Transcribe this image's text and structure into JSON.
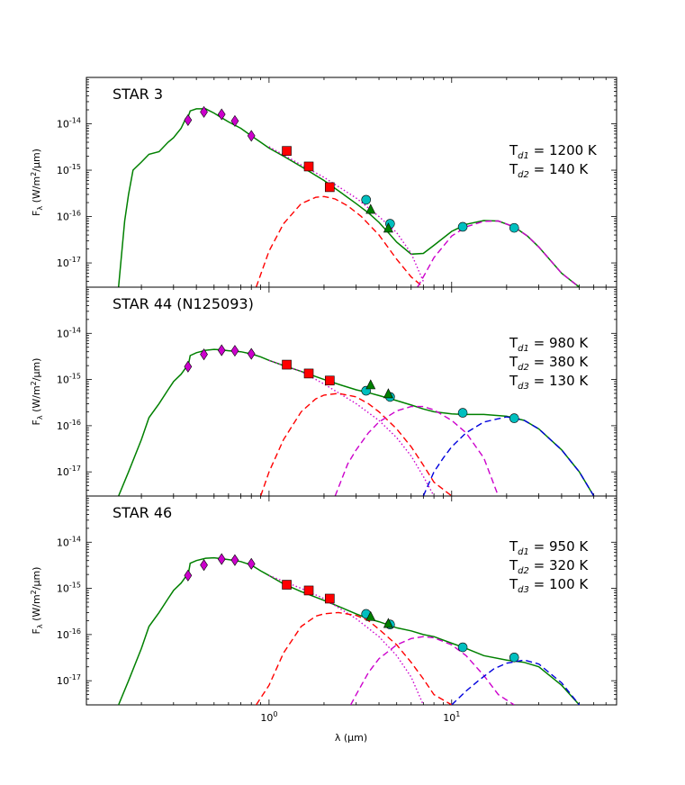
{
  "chart_data": [
    {
      "type": "line",
      "title": "STAR 3",
      "ylabel": "F_λ (W/m²/μm)",
      "xscale": "log",
      "yscale": "log",
      "xlim": [
        0.1,
        80
      ],
      "ylim": [
        3e-18,
        1e-13
      ],
      "temperatures": [
        {
          "sub": "d1",
          "text": "= 1200 K"
        },
        {
          "sub": "d2",
          "text": "= 140 K"
        }
      ],
      "series": [
        {
          "color": "#008000",
          "style": "solid",
          "x": [
            0.15,
            0.162,
            0.17,
            0.18,
            0.2,
            0.22,
            0.25,
            0.28,
            0.3,
            0.33,
            0.35,
            0.36,
            0.37,
            0.4,
            0.45,
            0.5,
            0.55,
            0.6,
            0.7,
            0.8,
            0.9,
            1.0,
            1.2,
            1.5,
            2.0,
            2.5,
            3.0,
            3.5,
            4.0,
            4.5,
            5.0,
            6.0,
            7.0,
            8.0,
            10.0,
            12.0,
            15.0,
            18.0,
            22.0,
            26.0,
            30.0,
            40.0,
            50.0
          ],
          "y": [
            3e-18,
            8e-17,
            3e-16,
            1e-15,
            1.5e-15,
            2.2e-15,
            2.5e-15,
            4e-15,
            5e-15,
            8e-15,
            1.3e-14,
            1.4e-14,
            1.9e-14,
            2.1e-14,
            2.1e-14,
            1.7e-14,
            1.35e-14,
            1.1e-14,
            8e-15,
            5.5e-15,
            4e-15,
            3e-15,
            2e-15,
            1.2e-15,
            6e-16,
            3.2e-16,
            1.9e-16,
            1.2e-16,
            7.5e-17,
            4.5e-17,
            2.8e-17,
            1.55e-17,
            1.6e-17,
            2.4e-17,
            4.8e-17,
            6.8e-17,
            8.2e-17,
            8e-17,
            6e-17,
            3.8e-17,
            2.2e-17,
            6e-18,
            3e-18
          ]
        },
        {
          "color": "#cc00cc",
          "style": "dotted",
          "x": [
            1.0,
            1.5,
            2.0,
            3.0,
            4.0,
            5.0,
            6.0,
            7.0
          ],
          "y": [
            3.2e-15,
            1.3e-15,
            7e-16,
            2.5e-16,
            1e-16,
            4.5e-17,
            1.6e-17,
            4e-18
          ]
        },
        {
          "color": "#ff0000",
          "style": "dashed",
          "x": [
            0.85,
            1.0,
            1.2,
            1.5,
            1.8,
            2.0,
            2.3,
            2.7,
            3.2,
            4.0,
            5.0,
            6.0,
            7.0
          ],
          "y": [
            3e-18,
            1.8e-17,
            7e-17,
            1.9e-16,
            2.6e-16,
            2.7e-16,
            2.4e-16,
            1.7e-16,
            1e-16,
            4e-17,
            1.2e-17,
            5e-18,
            3e-18
          ]
        },
        {
          "color": "#cc00cc",
          "style": "dashed",
          "x": [
            6.5,
            7.0,
            8.0,
            10.0,
            12.0,
            15.0,
            18.0,
            22.0,
            26.0,
            30.0,
            40.0,
            50.0
          ],
          "y": [
            3e-18,
            5e-18,
            1.3e-17,
            3.8e-17,
            6e-17,
            7.9e-17,
            8e-17,
            6e-17,
            3.8e-17,
            2.2e-17,
            6e-18,
            3e-18
          ]
        }
      ],
      "markers": [
        {
          "shape": "diamond",
          "color": "#cc00cc",
          "x": [
            0.36,
            0.44,
            0.55,
            0.65,
            0.8
          ],
          "y": [
            1.2e-14,
            1.8e-14,
            1.6e-14,
            1.15e-14,
            5.5e-15
          ]
        },
        {
          "shape": "square",
          "color": "#ff0000",
          "x": [
            1.25,
            1.65,
            2.15
          ],
          "y": [
            2.6e-15,
            1.2e-15,
            4.3e-16
          ]
        },
        {
          "shape": "circle",
          "color": "#00bfbf",
          "x": [
            3.4,
            4.6,
            11.5,
            22.0
          ],
          "y": [
            2.3e-16,
            7e-17,
            6e-17,
            5.7e-17
          ]
        },
        {
          "shape": "triangle",
          "color": "#008000",
          "x": [
            3.6,
            4.5
          ],
          "y": [
            1.4e-16,
            5.5e-17
          ]
        }
      ]
    },
    {
      "type": "line",
      "title": "STAR 44 (N125093)",
      "ylabel": "F_λ (W/m²/μm)",
      "xscale": "log",
      "yscale": "log",
      "xlim": [
        0.1,
        80
      ],
      "ylim": [
        3e-18,
        1e-13
      ],
      "temperatures": [
        {
          "sub": "d1",
          "text": "= 980 K"
        },
        {
          "sub": "d2",
          "text": "= 380 K"
        },
        {
          "sub": "d3",
          "text": "= 130 K"
        }
      ],
      "series": [
        {
          "color": "#008000",
          "style": "solid",
          "x": [
            0.15,
            0.17,
            0.2,
            0.22,
            0.25,
            0.28,
            0.3,
            0.33,
            0.35,
            0.36,
            0.37,
            0.4,
            0.45,
            0.5,
            0.55,
            0.6,
            0.7,
            0.8,
            0.9,
            1.0,
            1.2,
            1.5,
            2.0,
            2.5,
            3.0,
            3.5,
            4.0,
            5.0,
            6.0,
            7.0,
            8.0,
            10.0,
            12.0,
            15.0,
            20.0,
            25.0,
            30.0,
            40.0,
            50.0,
            60.0
          ],
          "y": [
            3e-18,
            1e-17,
            5e-17,
            1.5e-16,
            3e-16,
            6e-16,
            9e-16,
            1.3e-15,
            1.8e-15,
            1.9e-15,
            3.3e-15,
            3.8e-15,
            4.3e-15,
            4.5e-15,
            4.4e-15,
            4.2e-15,
            4e-15,
            3.6e-15,
            3.1e-15,
            2.6e-15,
            2e-15,
            1.5e-15,
            1e-15,
            7.5e-16,
            6e-16,
            5.2e-16,
            4.5e-16,
            3.5e-16,
            2.8e-16,
            2.3e-16,
            2e-16,
            1.8e-16,
            1.75e-16,
            1.75e-16,
            1.6e-16,
            1.3e-16,
            8.5e-17,
            3e-17,
            1e-17,
            3e-18
          ]
        },
        {
          "color": "#cc00cc",
          "style": "dotted",
          "x": [
            1.0,
            1.5,
            2.0,
            3.0,
            4.0,
            5.0,
            6.0,
            7.0,
            8.0
          ],
          "y": [
            2.6e-15,
            1.5e-15,
            8e-16,
            3e-16,
            1.3e-16,
            5.5e-17,
            2.2e-17,
            8e-18,
            3e-18
          ]
        },
        {
          "color": "#ff0000",
          "style": "dashed",
          "x": [
            0.9,
            1.0,
            1.2,
            1.5,
            1.8,
            2.0,
            2.4,
            3.0,
            3.5,
            4.0,
            5.0,
            6.0,
            7.0,
            8.0,
            10.0
          ],
          "y": [
            3e-18,
            1e-17,
            5e-17,
            2e-16,
            3.8e-16,
            4.6e-16,
            5e-16,
            4.2e-16,
            3e-16,
            2e-16,
            8.5e-17,
            3.5e-17,
            1.4e-17,
            6e-18,
            3e-18
          ]
        },
        {
          "color": "#cc00cc",
          "style": "dashed",
          "x": [
            2.3,
            2.7,
            3.0,
            3.5,
            4.0,
            5.0,
            6.0,
            7.0,
            8.0,
            10.0,
            12.0,
            15.0,
            18.0
          ],
          "y": [
            3e-18,
            1.5e-17,
            3e-17,
            7e-17,
            1.2e-16,
            2.1e-16,
            2.6e-16,
            2.6e-16,
            2.2e-16,
            1.3e-16,
            7e-17,
            2e-17,
            3e-18
          ]
        },
        {
          "color": "#0000dd",
          "style": "dashed",
          "x": [
            7.0,
            8.0,
            9.0,
            10.0,
            12.0,
            15.0,
            20.0,
            25.0,
            30.0,
            40.0,
            50.0,
            60.0
          ],
          "y": [
            3e-18,
            1e-17,
            2e-17,
            3.5e-17,
            7e-17,
            1.2e-16,
            1.55e-16,
            1.3e-16,
            8.5e-17,
            3e-17,
            1e-17,
            3e-18
          ]
        }
      ],
      "markers": [
        {
          "shape": "diamond",
          "color": "#cc00cc",
          "x": [
            0.36,
            0.44,
            0.55,
            0.65,
            0.8
          ],
          "y": [
            1.9e-15,
            3.5e-15,
            4.3e-15,
            4.2e-15,
            3.6e-15
          ]
        },
        {
          "shape": "square",
          "color": "#ff0000",
          "x": [
            1.25,
            1.65,
            2.15
          ],
          "y": [
            2.1e-15,
            1.35e-15,
            9.5e-16
          ]
        },
        {
          "shape": "circle",
          "color": "#00bfbf",
          "x": [
            3.4,
            4.6,
            11.5,
            22.0
          ],
          "y": [
            5.7e-16,
            4.2e-16,
            1.9e-16,
            1.45e-16
          ]
        },
        {
          "shape": "triangle",
          "color": "#008000",
          "x": [
            3.6,
            4.5
          ],
          "y": [
            7.5e-16,
            4.8e-16
          ]
        }
      ]
    },
    {
      "type": "line",
      "title": "STAR 46",
      "ylabel": "F_λ (W/m²/μm)",
      "xlabel": "λ (μm)",
      "xscale": "log",
      "yscale": "log",
      "xlim": [
        0.1,
        80
      ],
      "ylim": [
        3e-18,
        1e-13
      ],
      "xticks": [
        {
          "base": "10",
          "exp": "0",
          "value": 1
        },
        {
          "base": "10",
          "exp": "1",
          "value": 10
        }
      ],
      "temperatures": [
        {
          "sub": "d1",
          "text": "= 950 K"
        },
        {
          "sub": "d2",
          "text": "= 320 K"
        },
        {
          "sub": "d3",
          "text": "= 100 K"
        }
      ],
      "series": [
        {
          "color": "#008000",
          "style": "solid",
          "x": [
            0.15,
            0.17,
            0.2,
            0.22,
            0.25,
            0.28,
            0.3,
            0.33,
            0.35,
            0.36,
            0.37,
            0.4,
            0.45,
            0.5,
            0.55,
            0.6,
            0.7,
            0.8,
            0.9,
            1.0,
            1.2,
            1.5,
            2.0,
            2.5,
            3.0,
            3.5,
            4.0,
            5.0,
            6.0,
            7.0,
            8.0,
            10.0,
            12.0,
            15.0,
            20.0,
            25.0,
            30.0,
            40.0,
            50.0
          ],
          "y": [
            3e-18,
            1e-17,
            5e-17,
            1.5e-16,
            3e-16,
            6e-16,
            9e-16,
            1.3e-15,
            1.8e-15,
            1.9e-15,
            3.5e-15,
            4e-15,
            4.5e-15,
            4.6e-15,
            4.4e-15,
            4.2e-15,
            3.8e-15,
            3.2e-15,
            2.4e-15,
            1.9e-15,
            1.25e-15,
            8.5e-16,
            5.5e-16,
            3.8e-16,
            2.8e-16,
            2.2e-16,
            1.9e-16,
            1.4e-16,
            1.2e-16,
            1e-16,
            9e-17,
            6.5e-17,
            5e-17,
            3.5e-17,
            2.8e-17,
            2.5e-17,
            2e-17,
            8e-18,
            3e-18
          ]
        },
        {
          "color": "#cc00cc",
          "style": "dotted",
          "x": [
            1.0,
            1.5,
            2.0,
            3.0,
            4.0,
            5.0,
            6.0,
            7.0
          ],
          "y": [
            1.9e-15,
            1e-15,
            6e-16,
            2.2e-16,
            9e-17,
            3.5e-17,
            1.2e-17,
            3e-18
          ]
        },
        {
          "color": "#ff0000",
          "style": "dashed",
          "x": [
            0.85,
            1.0,
            1.2,
            1.5,
            1.8,
            2.0,
            2.4,
            3.0,
            3.5,
            4.0,
            5.0,
            6.0,
            7.0,
            8.0,
            10.0
          ],
          "y": [
            3e-18,
            8e-18,
            4e-17,
            1.5e-16,
            2.5e-16,
            2.8e-16,
            3e-16,
            2.6e-16,
            2e-16,
            1.3e-16,
            6e-17,
            2.5e-17,
            1.1e-17,
            5e-18,
            3e-18
          ]
        },
        {
          "color": "#cc00cc",
          "style": "dashed",
          "x": [
            2.8,
            3.0,
            3.5,
            4.0,
            5.0,
            6.0,
            7.0,
            8.0,
            10.0,
            12.0,
            15.0,
            18.0,
            22.0
          ],
          "y": [
            3e-18,
            5e-18,
            1.5e-17,
            3e-17,
            6e-17,
            8.2e-17,
            9e-17,
            8.5e-17,
            6e-17,
            3.5e-17,
            1.3e-17,
            5e-18,
            3e-18
          ]
        },
        {
          "color": "#0000dd",
          "style": "dashed",
          "x": [
            10.0,
            12.0,
            14.0,
            17.0,
            20.0,
            25.0,
            30.0,
            40.0,
            50.0
          ],
          "y": [
            3e-18,
            6e-18,
            1e-17,
            1.8e-17,
            2.4e-17,
            2.8e-17,
            2.3e-17,
            9e-18,
            3e-18
          ]
        }
      ],
      "markers": [
        {
          "shape": "diamond",
          "color": "#cc00cc",
          "x": [
            0.36,
            0.44,
            0.55,
            0.65,
            0.8
          ],
          "y": [
            1.9e-15,
            3.2e-15,
            4.3e-15,
            4.1e-15,
            3.4e-15
          ]
        },
        {
          "shape": "square",
          "color": "#ff0000",
          "x": [
            1.25,
            1.65,
            2.15
          ],
          "y": [
            1.2e-15,
            9e-16,
            6e-16
          ]
        },
        {
          "shape": "circle",
          "color": "#00bfbf",
          "x": [
            3.4,
            4.6,
            11.5,
            22.0
          ],
          "y": [
            2.8e-16,
            1.65e-16,
            5.3e-17,
            3.2e-17
          ]
        },
        {
          "shape": "triangle",
          "color": "#008000",
          "x": [
            3.6,
            4.5
          ],
          "y": [
            2.4e-16,
            1.7e-16
          ]
        }
      ]
    }
  ],
  "yticks": [
    {
      "base": "10",
      "exp": "-14",
      "value": 1e-14
    },
    {
      "base": "10",
      "exp": "-15",
      "value": 1e-15
    },
    {
      "base": "10",
      "exp": "-16",
      "value": 1e-16
    },
    {
      "base": "10",
      "exp": "-17",
      "value": 1e-17
    }
  ],
  "labels": {
    "t_letter": "T",
    "ylabel_prefix": "F",
    "ylabel_sub": "λ",
    "ylabel_unit_a": " (W/m",
    "ylabel_unit_sup": "2",
    "ylabel_unit_b": "/μm)",
    "xlabel": "λ (μm)"
  }
}
